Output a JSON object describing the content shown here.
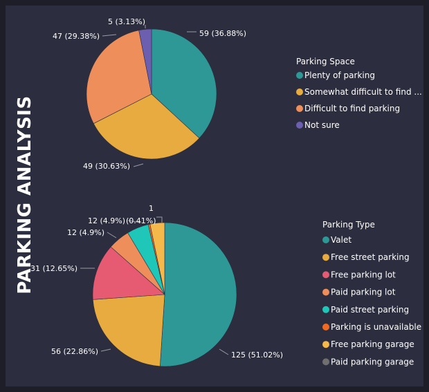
{
  "page": {
    "title": "PARKING ANALYSIS"
  },
  "chart_data": [
    {
      "type": "pie",
      "legend_title": "Parking Space",
      "categories": [
        "Plenty of parking",
        "Somewhat difficult to find ...",
        "Difficult to find parking",
        "Not sure"
      ],
      "values": [
        59,
        49,
        47,
        5
      ],
      "data_labels": [
        "59 (36.88%)",
        "49 (30.63%)",
        "47 (29.38%)",
        "5 (3.13%)"
      ],
      "colors": [
        "#2e9896",
        "#e8ab3f",
        "#ee8e5a",
        "#6d5fb0"
      ],
      "legend_position": "right"
    },
    {
      "type": "pie",
      "legend_title": "Parking Type",
      "categories": [
        "Valet",
        "Free street parking",
        "Free parking lot",
        "Paid parking lot",
        "Paid street parking",
        "Parking is unavailable",
        "Free parking garage",
        "Paid parking garage"
      ],
      "values": [
        125,
        56,
        31,
        12,
        12,
        1,
        8,
        0
      ],
      "data_labels": [
        "125 (51.02%)",
        "56 (22.86%)",
        "31 (12.65%)",
        "12 (4.9%)",
        "12 (4.9%)",
        "1 (0.41%)",
        "",
        ""
      ],
      "colors": [
        "#2e9896",
        "#e8ab3f",
        "#e65a72",
        "#ee8e5a",
        "#1fc7b8",
        "#f26a21",
        "#f5b84a",
        "#707070"
      ],
      "legend_position": "right"
    }
  ]
}
